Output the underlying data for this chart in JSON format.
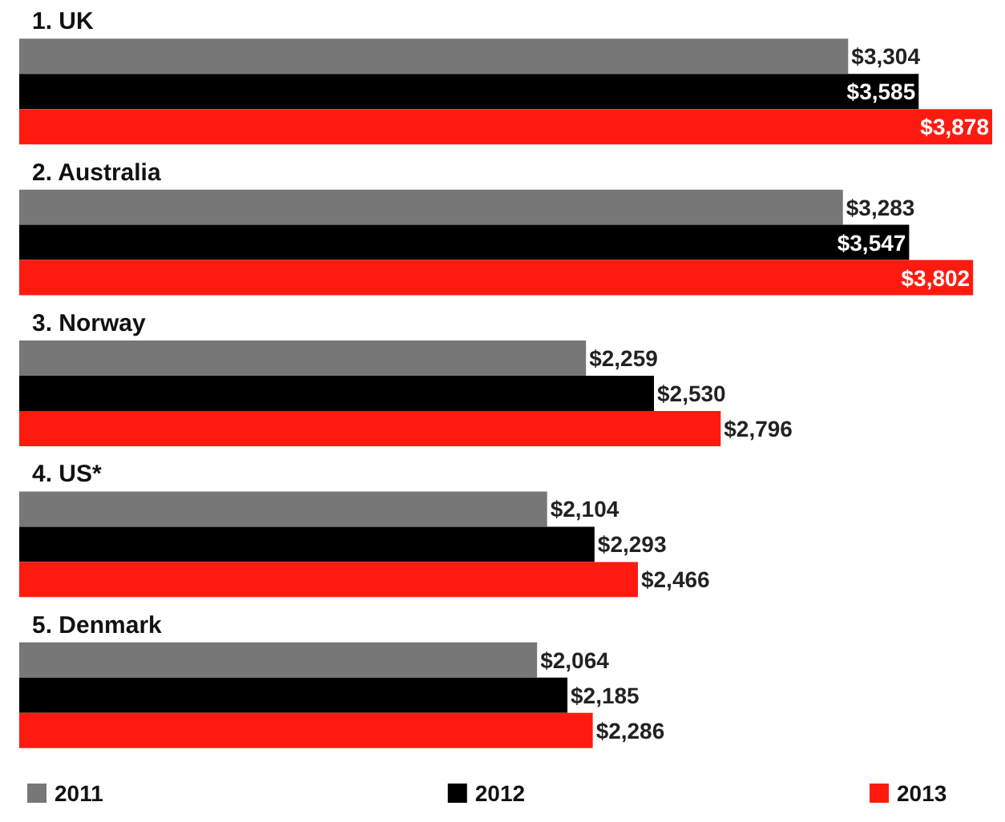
{
  "chart_data": {
    "type": "bar",
    "orientation": "horizontal",
    "categories": [
      "1. UK",
      "2. Australia",
      "3. Norway",
      "4. US*",
      "5. Denmark"
    ],
    "series": [
      {
        "name": "2011",
        "color": "#777777",
        "values": [
          3304,
          3283,
          2259,
          2104,
          2064
        ],
        "value_labels": [
          "$3,304",
          "$3,283",
          "$2,259",
          "$2,104",
          "$2,064"
        ]
      },
      {
        "name": "2012",
        "color": "#000000",
        "values": [
          3585,
          3547,
          2530,
          2293,
          2185
        ],
        "value_labels": [
          "$3,585",
          "$3,547",
          "$2,530",
          "$2,293",
          "$2,185"
        ]
      },
      {
        "name": "2013",
        "color": "#ff1a0f",
        "values": [
          3878,
          3802,
          2796,
          2466,
          2286
        ],
        "value_labels": [
          "$3,878",
          "$3,802",
          "$2,796",
          "$2,466",
          "$2,286"
        ]
      }
    ],
    "legend": "bottom"
  }
}
